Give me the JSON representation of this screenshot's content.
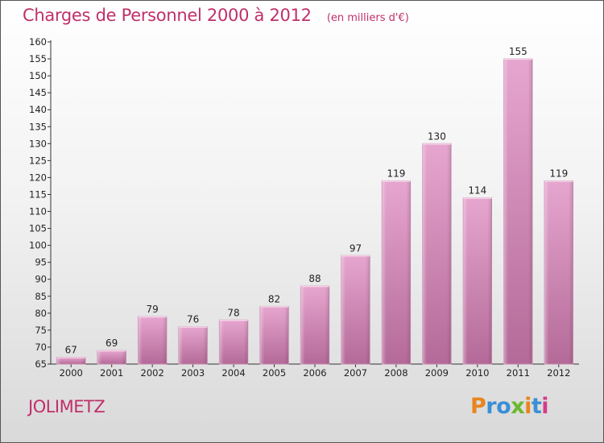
{
  "chart_data": {
    "type": "bar",
    "title": "Charges de Personnel 2000 à 2012",
    "subtitle": "(en milliers d'€)",
    "categories": [
      "2000",
      "2001",
      "2002",
      "2003",
      "2004",
      "2005",
      "2006",
      "2007",
      "2008",
      "2009",
      "2010",
      "2011",
      "2012"
    ],
    "values": [
      67,
      69,
      79,
      76,
      78,
      82,
      88,
      97,
      119,
      130,
      114,
      155,
      119
    ],
    "ylim": [
      65,
      160
    ],
    "ytick_step": 5,
    "grid": false,
    "bar_color": "#d98ab8",
    "xlabel": "",
    "ylabel": ""
  },
  "commune": "JOLIMETZ",
  "brand": {
    "letters": [
      "P",
      "r",
      "o",
      "x",
      "i",
      "t",
      "i"
    ],
    "colors": [
      "#e8851f",
      "#3a8fd6",
      "#3a8fd6",
      "#6ab82c",
      "#e8851f",
      "#3a8fd6",
      "#d63b8a"
    ]
  }
}
